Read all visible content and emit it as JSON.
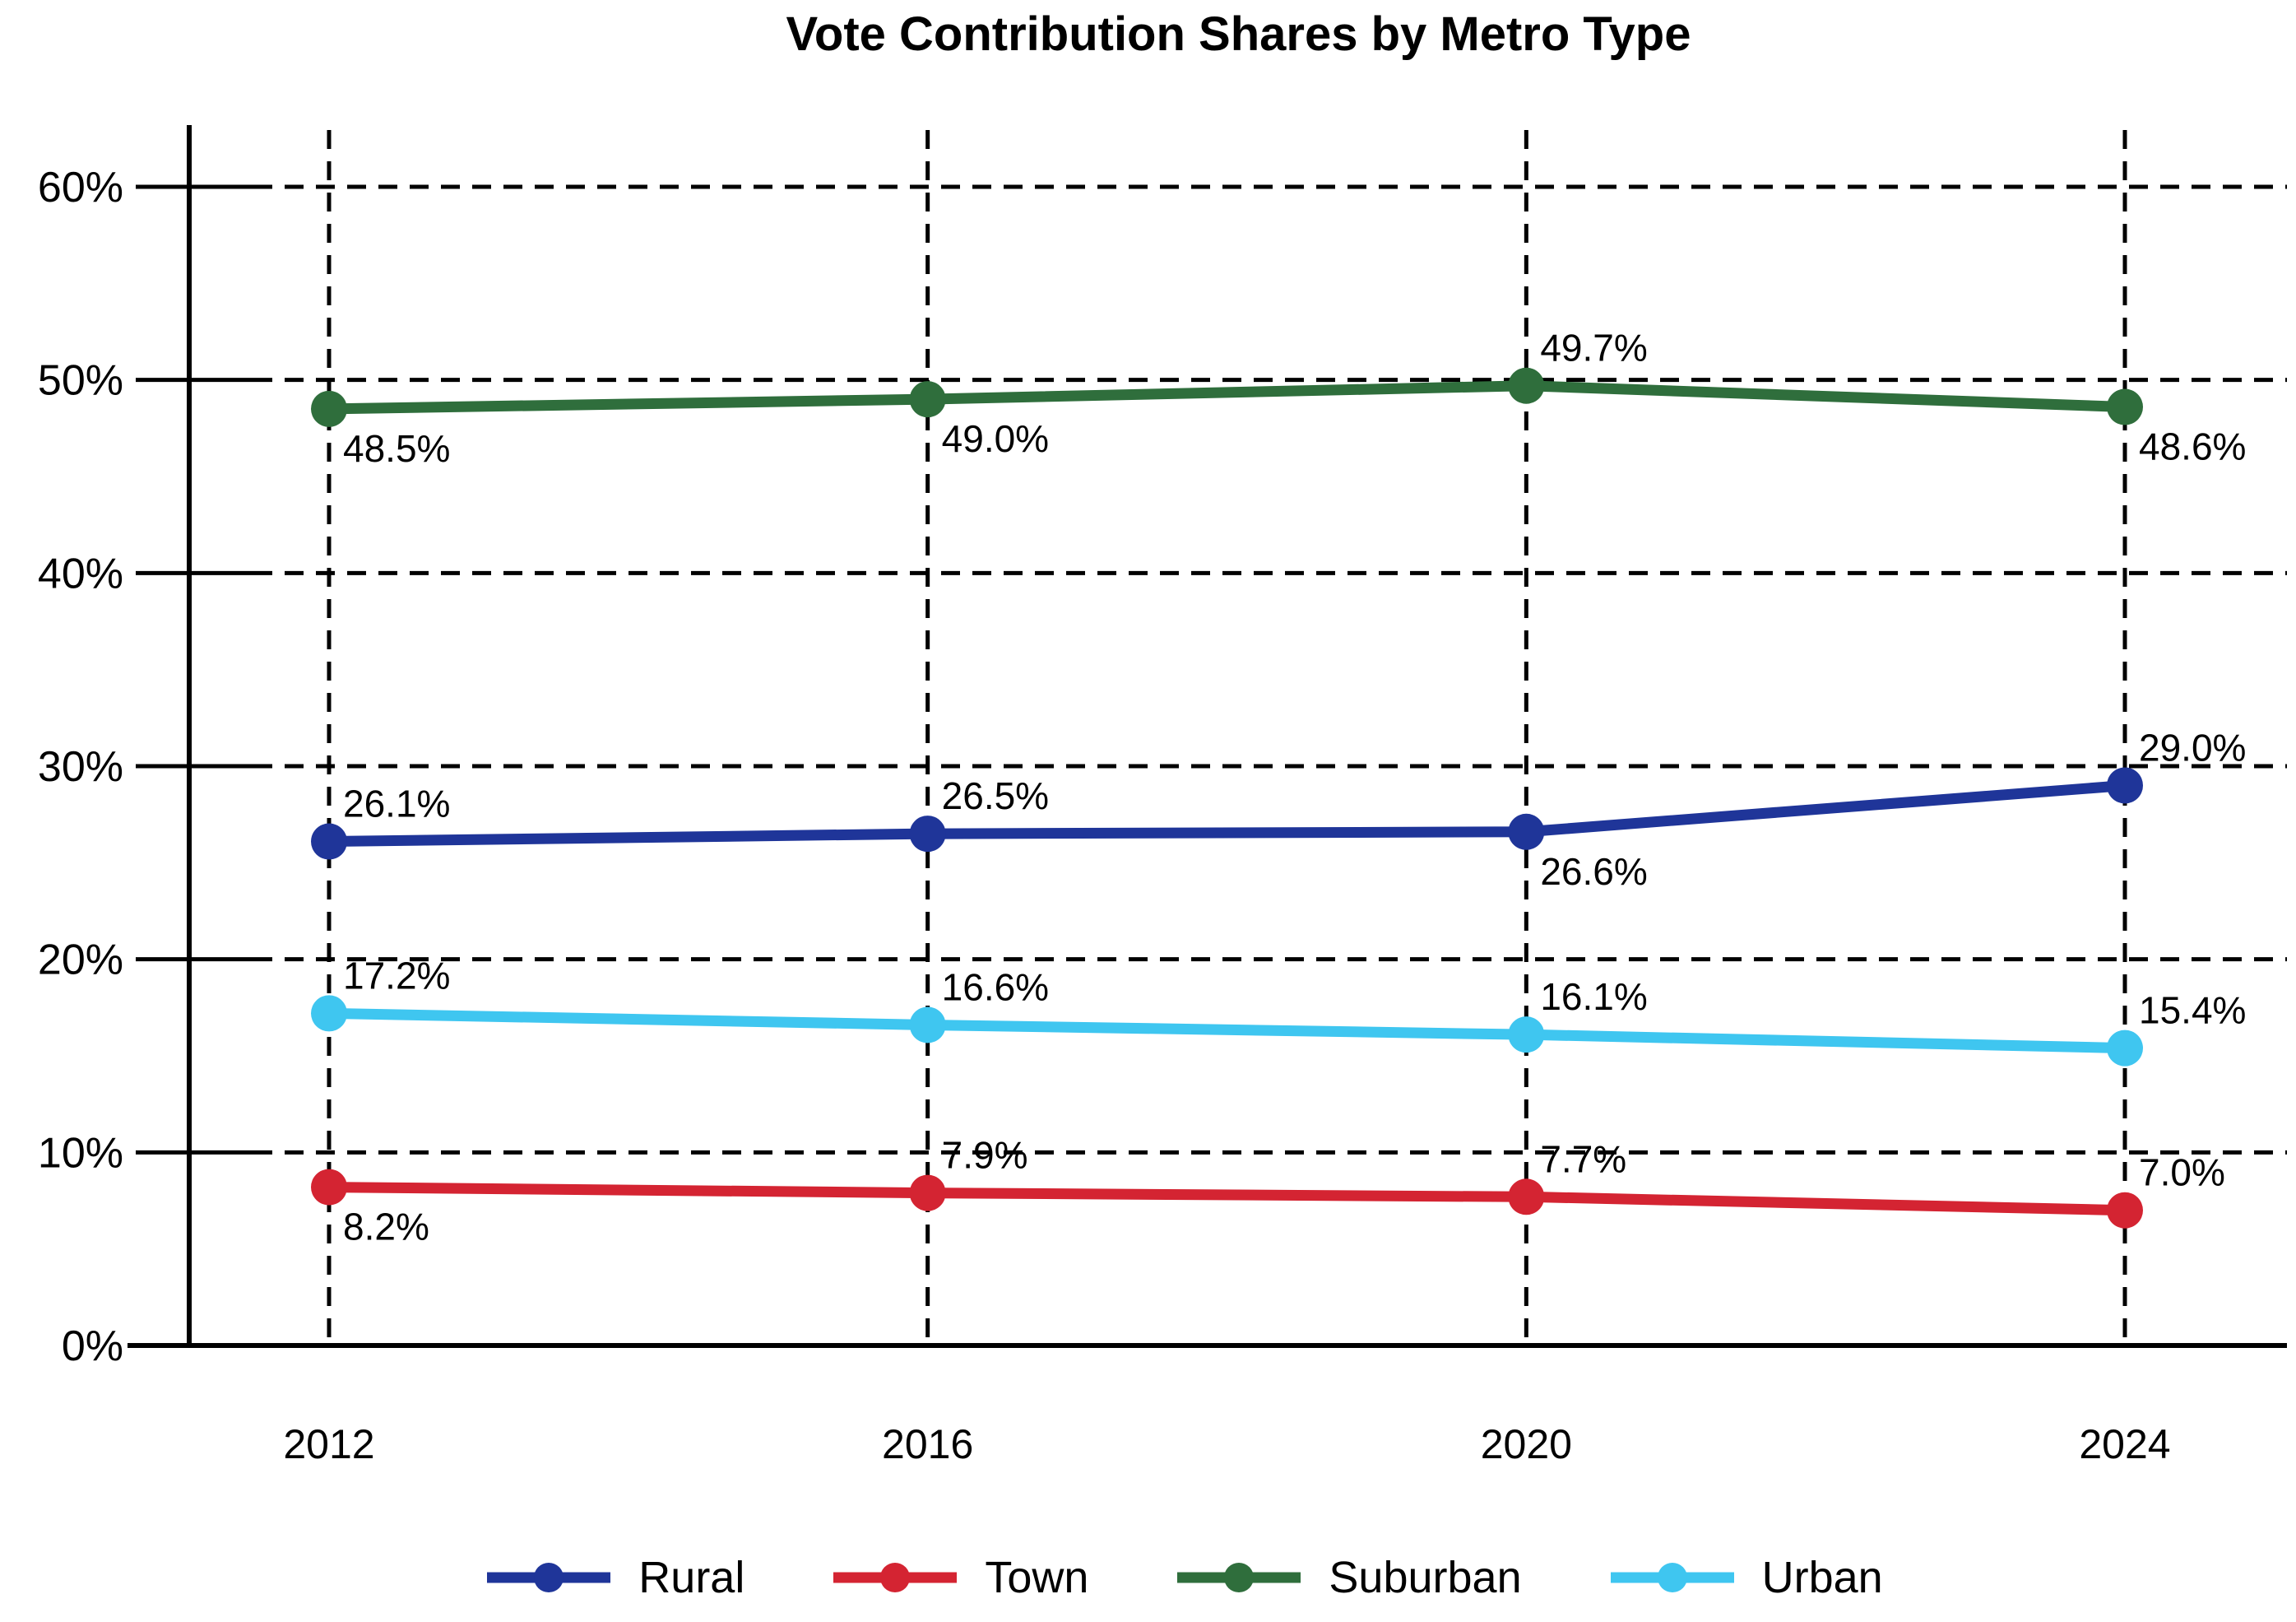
{
  "chart_data": {
    "type": "line",
    "title": "Vote Contribution Shares by Metro Type",
    "x": [
      2012,
      2016,
      2020,
      2024
    ],
    "x_tick_labels": [
      "2012",
      "2016",
      "2020",
      "2024"
    ],
    "y_ticks": [
      0,
      10,
      20,
      30,
      40,
      50,
      60
    ],
    "y_tick_labels": [
      "0%",
      "10%",
      "20%",
      "30%",
      "40%",
      "50%",
      "60%"
    ],
    "ylim": [
      0,
      62
    ],
    "xlabel": "",
    "ylabel": "",
    "grid": {
      "horizontal": "dashed",
      "vertical": "dashed"
    },
    "legend_position": "bottom-center",
    "marker": "filled-circle",
    "series": [
      {
        "name": "Rural",
        "color": "#1f3599",
        "values": [
          26.1,
          26.5,
          26.6,
          29.0
        ],
        "point_labels": [
          "26.1%",
          "26.5%",
          "26.6%",
          "29.0%"
        ],
        "label_placement": [
          "above",
          "above",
          "below",
          "above"
        ]
      },
      {
        "name": "Town",
        "color": "#d42432",
        "values": [
          8.2,
          7.9,
          7.7,
          7.0
        ],
        "point_labels": [
          "8.2%",
          "7.9%",
          "7.7%",
          "7.0%"
        ],
        "label_placement": [
          "below",
          "above",
          "above",
          "above"
        ]
      },
      {
        "name": "Suburban",
        "color": "#2f6e3c",
        "values": [
          48.5,
          49.0,
          49.7,
          48.6
        ],
        "point_labels": [
          "48.5%",
          "49.0%",
          "49.7%",
          "48.6%"
        ],
        "label_placement": [
          "below",
          "below",
          "above",
          "below"
        ]
      },
      {
        "name": "Urban",
        "color": "#3fc6f0",
        "values": [
          17.2,
          16.6,
          16.1,
          15.4
        ],
        "point_labels": [
          "17.2%",
          "16.6%",
          "16.1%",
          "15.4%"
        ],
        "label_placement": [
          "above",
          "above",
          "above",
          "above"
        ]
      }
    ]
  }
}
